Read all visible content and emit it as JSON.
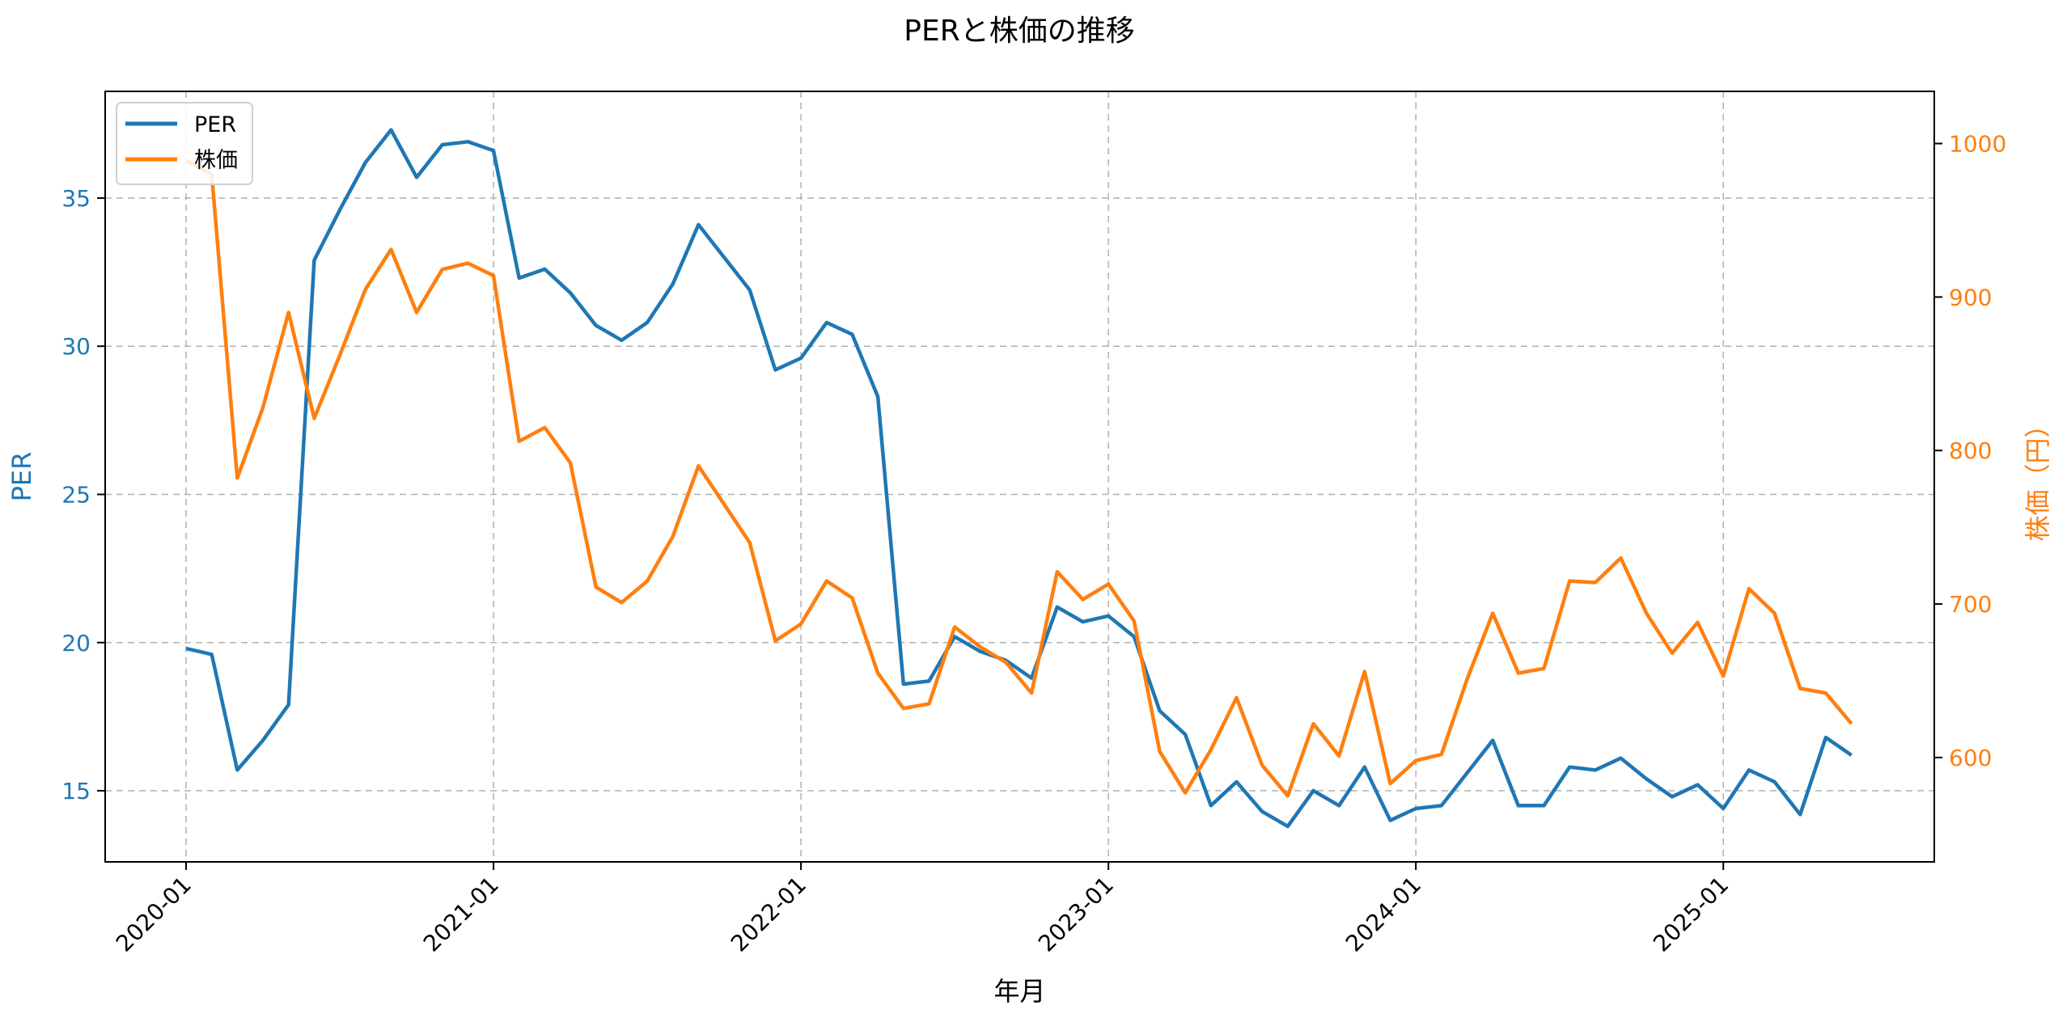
{
  "chart_data": {
    "type": "line",
    "title": "PERと株価の推移",
    "xlabel": "年月",
    "ylabel": "PER",
    "ylabel_right": "株価（円）",
    "x_tick_labels": [
      "2020-01",
      "2021-01",
      "2022-01",
      "2023-01",
      "2024-01",
      "2025-01"
    ],
    "y_ticks_left": [
      15,
      20,
      25,
      30,
      35
    ],
    "y_ticks_right": [
      600,
      700,
      800,
      900,
      1000
    ],
    "ylim_left": [
      12.6,
      38.6
    ],
    "ylim_right": [
      532,
      1034
    ],
    "grid": true,
    "legend_position": "upper left",
    "x": [
      "2020-01",
      "2020-02",
      "2020-03",
      "2020-04",
      "2020-05",
      "2020-06",
      "2020-07",
      "2020-08",
      "2020-09",
      "2020-10",
      "2020-11",
      "2020-12",
      "2021-01",
      "2021-02",
      "2021-03",
      "2021-04",
      "2021-05",
      "2021-06",
      "2021-07",
      "2021-08",
      "2021-09",
      "2021-10",
      "2021-11",
      "2021-12",
      "2022-01",
      "2022-02",
      "2022-03",
      "2022-04",
      "2022-05",
      "2022-06",
      "2022-07",
      "2022-08",
      "2022-09",
      "2022-10",
      "2022-11",
      "2022-12",
      "2023-01",
      "2023-02",
      "2023-03",
      "2023-04",
      "2023-05",
      "2023-06",
      "2023-07",
      "2023-08",
      "2023-09",
      "2023-10",
      "2023-11",
      "2023-12",
      "2024-01",
      "2024-02",
      "2024-03",
      "2024-04",
      "2024-05",
      "2024-06",
      "2024-07",
      "2024-08",
      "2024-09",
      "2024-10",
      "2024-11",
      "2024-12",
      "2025-01",
      "2025-02",
      "2025-03",
      "2025-04",
      "2025-05",
      "2025-06"
    ],
    "series": [
      {
        "name": "PER",
        "axis": "left",
        "color": "#1f77b4",
        "values": [
          19.8,
          19.6,
          15.7,
          16.7,
          17.9,
          32.9,
          34.6,
          36.2,
          37.3,
          35.7,
          36.8,
          36.9,
          36.6,
          32.3,
          32.6,
          31.8,
          30.7,
          30.2,
          30.8,
          32.1,
          34.1,
          33.0,
          31.9,
          29.2,
          29.6,
          30.8,
          30.4,
          28.3,
          18.6,
          18.7,
          20.2,
          19.7,
          19.4,
          18.8,
          21.2,
          20.7,
          20.9,
          20.2,
          17.7,
          16.9,
          14.5,
          15.3,
          14.3,
          13.8,
          15.0,
          14.5,
          15.8,
          14.0,
          14.4,
          14.5,
          15.6,
          16.7,
          14.5,
          14.5,
          15.8,
          15.7,
          16.1,
          15.4,
          14.8,
          15.2,
          14.4,
          15.7,
          15.3,
          14.2,
          16.8,
          16.2
        ]
      },
      {
        "name": "株価",
        "axis": "right",
        "color": "#ff7f0e",
        "values": [
          989,
          980,
          782,
          828,
          890,
          821,
          862,
          905,
          931,
          890,
          918,
          922,
          914,
          806,
          815,
          792,
          711,
          701,
          715,
          744,
          790,
          765,
          740,
          676,
          687,
          715,
          704,
          655,
          632,
          635,
          685,
          672,
          662,
          642,
          721,
          703,
          713,
          689,
          604,
          577,
          605,
          639,
          595,
          575,
          622,
          601,
          656,
          583,
          598,
          602,
          651,
          694,
          655,
          658,
          715,
          714,
          730,
          694,
          668,
          688,
          653,
          710,
          694,
          645,
          642,
          622
        ]
      }
    ]
  },
  "legend": {
    "items": [
      {
        "label": "PER",
        "color": "#1f77b4"
      },
      {
        "label": "株価",
        "color": "#ff7f0e"
      }
    ]
  }
}
